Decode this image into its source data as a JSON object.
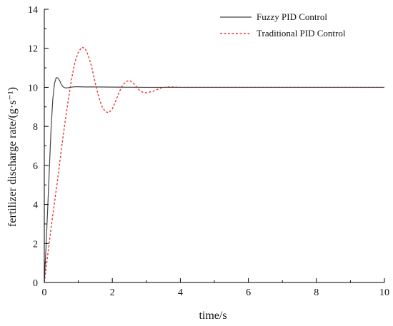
{
  "chart_data": {
    "type": "line",
    "title": "",
    "xlabel": "time/s",
    "ylabel": "fertilizer discharge rate/(g·s⁻¹)",
    "xlim": [
      0,
      10
    ],
    "ylim": [
      0,
      14
    ],
    "xticks": [
      0,
      2,
      4,
      6,
      8,
      10
    ],
    "yticks": [
      0,
      2,
      4,
      6,
      8,
      10,
      12,
      14
    ],
    "grid": false,
    "legend_position": "top-right",
    "series": [
      {
        "name": "Fuzzy PID Control",
        "color": "#444444",
        "line_style": "solid",
        "x": [
          0,
          0.05,
          0.1,
          0.15,
          0.2,
          0.25,
          0.3,
          0.35,
          0.4,
          0.45,
          0.5,
          0.55,
          0.6,
          0.65,
          0.7,
          0.8,
          0.9,
          1.0,
          1.2,
          1.5,
          2.0,
          3.0,
          4.0,
          6.0,
          8.0,
          10.0
        ],
        "y": [
          0,
          1.8,
          3.8,
          5.9,
          7.9,
          9.4,
          10.2,
          10.5,
          10.48,
          10.35,
          10.15,
          10.03,
          9.98,
          9.97,
          9.98,
          10.01,
          10.03,
          10.03,
          10.02,
          10.02,
          10.01,
          10.0,
          10.0,
          10.0,
          10.0,
          10.0
        ]
      },
      {
        "name": "Traditional PID Control",
        "color": "#e53935",
        "line_style": "dashed",
        "x": [
          0,
          0.1,
          0.2,
          0.3,
          0.4,
          0.5,
          0.6,
          0.7,
          0.8,
          0.9,
          1.0,
          1.1,
          1.2,
          1.3,
          1.4,
          1.5,
          1.6,
          1.7,
          1.8,
          1.9,
          2.0,
          2.1,
          2.2,
          2.3,
          2.4,
          2.5,
          2.6,
          2.7,
          2.8,
          2.9,
          3.0,
          3.2,
          3.4,
          3.6,
          3.8,
          4.0,
          4.5,
          5.0,
          6.0,
          8.0,
          10.0
        ],
        "y": [
          0,
          1.4,
          2.8,
          4.1,
          5.4,
          6.8,
          8.1,
          9.3,
          10.4,
          11.3,
          11.8,
          12.05,
          12.0,
          11.6,
          11.0,
          10.2,
          9.5,
          9.0,
          8.75,
          8.7,
          8.9,
          9.3,
          9.75,
          10.1,
          10.3,
          10.35,
          10.25,
          10.05,
          9.85,
          9.75,
          9.72,
          9.8,
          9.95,
          10.02,
          10.02,
          10.0,
          10.0,
          10.0,
          10.0,
          10.0,
          10.0
        ]
      }
    ]
  }
}
